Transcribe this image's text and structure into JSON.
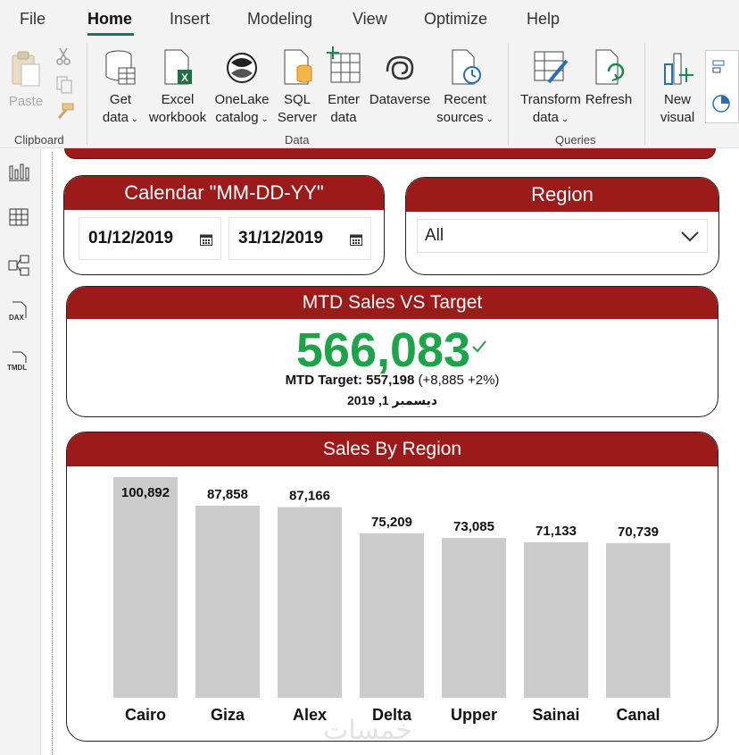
{
  "menu": {
    "items": [
      "File",
      "Home",
      "Insert",
      "Modeling",
      "View",
      "Optimize",
      "Help"
    ],
    "active": "Home"
  },
  "ribbon": {
    "clipboard": {
      "paste": "Paste",
      "group": "Clipboard"
    },
    "data": {
      "group": "Data",
      "get_data": [
        "Get",
        "data"
      ],
      "excel": [
        "Excel",
        "workbook"
      ],
      "onelake": [
        "OneLake",
        "catalog"
      ],
      "sql": [
        "SQL",
        "Server"
      ],
      "enter": [
        "Enter",
        "data"
      ],
      "dataverse": "Dataverse",
      "recent": [
        "Recent",
        "sources"
      ]
    },
    "queries": {
      "group": "Queries",
      "transform": [
        "Transform",
        "data"
      ],
      "refresh": "Refresh"
    },
    "insert": {
      "new_visual": [
        "New",
        "visual"
      ]
    }
  },
  "calendar_slicer": {
    "title": "Calendar \"MM-DD-YY\"",
    "start": "01/12/2019",
    "end": "31/12/2019"
  },
  "region_slicer": {
    "title": "Region",
    "selected": "All"
  },
  "kpi": {
    "title": "MTD Sales VS Target",
    "value": "566,083",
    "target_label": "MTD Target:",
    "target_value": "557,198",
    "delta": "(+8,885 +2%)",
    "date": "دیسمبر 1, 2019"
  },
  "chart_data": {
    "type": "bar",
    "title": "Sales By Region",
    "categories": [
      "Cairo",
      "Giza",
      "Alex",
      "Delta",
      "Upper",
      "Sainai",
      "Canal"
    ],
    "values": [
      100892,
      87858,
      87166,
      75209,
      73085,
      71133,
      70739
    ],
    "value_labels": [
      "100,892",
      "87,858",
      "87,166",
      "75,209",
      "73,085",
      "71,133",
      "70,739"
    ],
    "bar_color": "#cccccc",
    "ylim": [
      0,
      100892
    ]
  },
  "colors": {
    "header_red": "#9b1b1b",
    "kpi_green": "#1fa34a",
    "accent_teal": "#117865"
  },
  "watermark": "خمسات"
}
